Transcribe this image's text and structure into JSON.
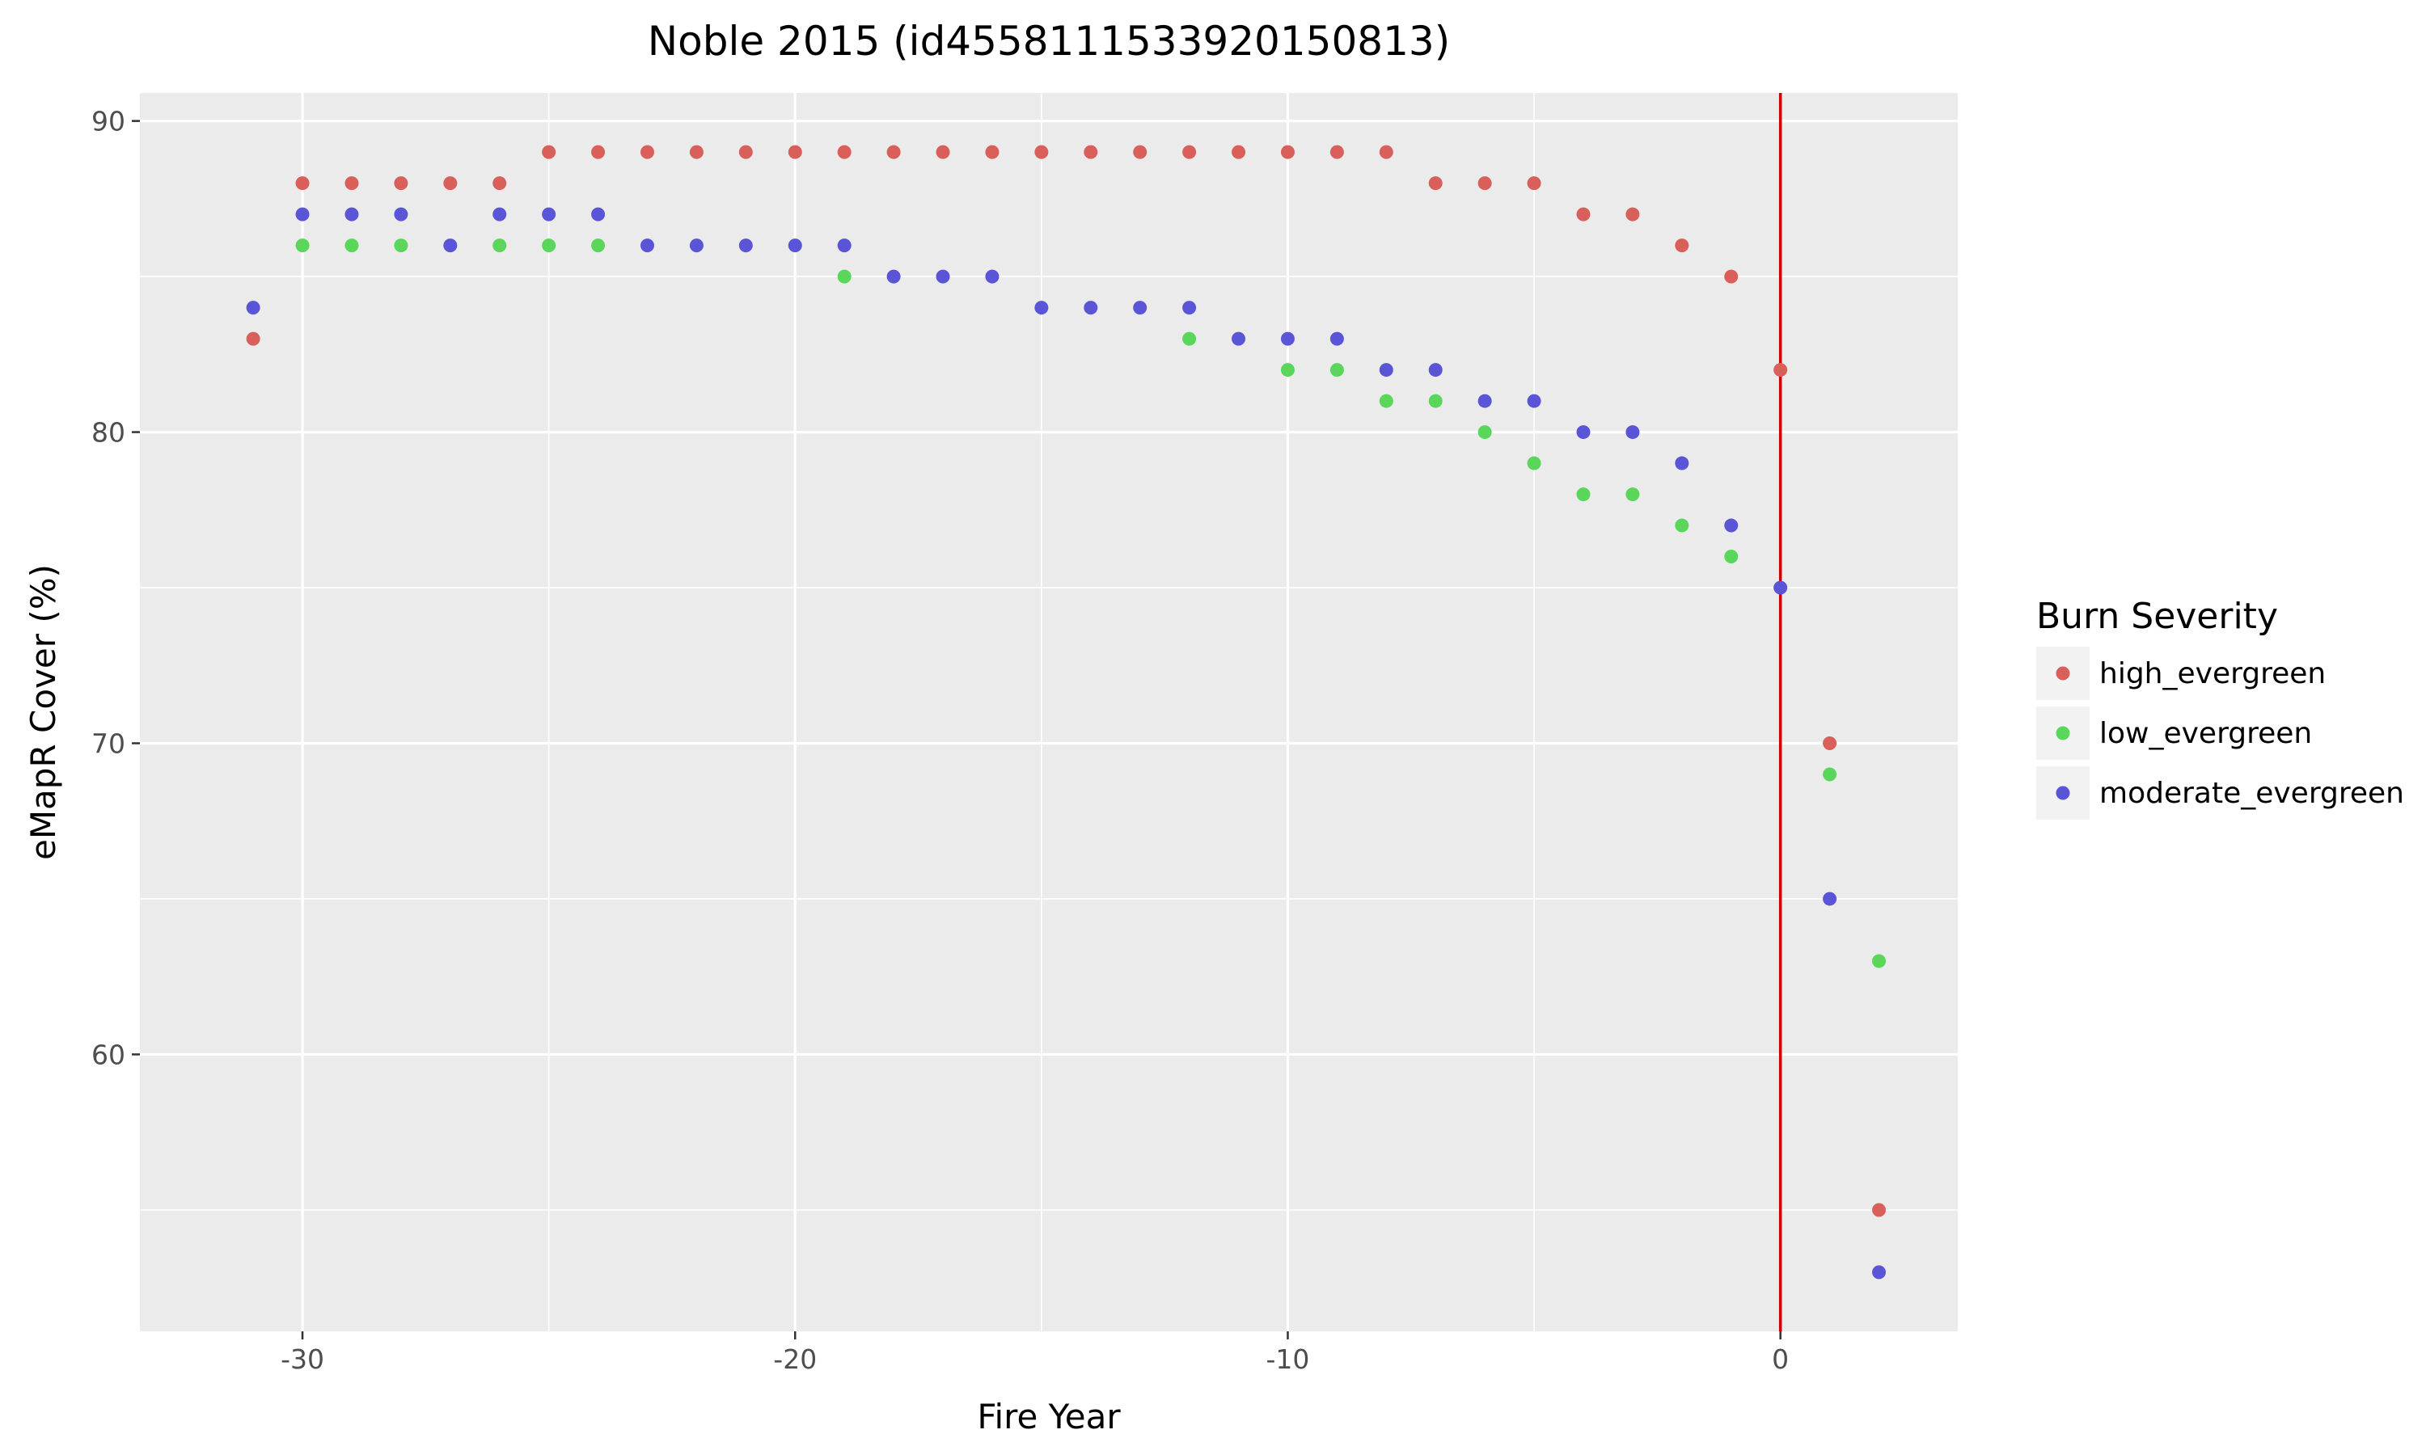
{
  "chart_data": {
    "type": "scatter",
    "title": "Noble 2015 (id4558111533920150813)",
    "xlabel": "Fire Year",
    "ylabel": "eMapR Cover (%)",
    "xlim": [
      -33.3,
      3.6
    ],
    "ylim": [
      51.1,
      90.9
    ],
    "x_ticks": [
      -30,
      -20,
      -10,
      0
    ],
    "y_ticks": [
      60,
      70,
      80,
      90
    ],
    "grid": true,
    "legend": {
      "title": "Burn Severity",
      "position": "right"
    },
    "reference_line": {
      "x": 0,
      "color": "#cc0000"
    },
    "series": [
      {
        "name": "high_evergreen",
        "color": "#d95f5a",
        "points": [
          [
            -31,
            83
          ],
          [
            -30,
            88
          ],
          [
            -29,
            88
          ],
          [
            -28,
            88
          ],
          [
            -27,
            88
          ],
          [
            -26,
            88
          ],
          [
            -25,
            89
          ],
          [
            -24,
            89
          ],
          [
            -23,
            89
          ],
          [
            -22,
            89
          ],
          [
            -21,
            89
          ],
          [
            -20,
            89
          ],
          [
            -19,
            89
          ],
          [
            -18,
            89
          ],
          [
            -17,
            89
          ],
          [
            -16,
            89
          ],
          [
            -15,
            89
          ],
          [
            -14,
            89
          ],
          [
            -13,
            89
          ],
          [
            -12,
            89
          ],
          [
            -11,
            89
          ],
          [
            -10,
            89
          ],
          [
            -9,
            89
          ],
          [
            -8,
            89
          ],
          [
            -7,
            88
          ],
          [
            -6,
            88
          ],
          [
            -5,
            88
          ],
          [
            -4,
            87
          ],
          [
            -3,
            87
          ],
          [
            -2,
            86
          ],
          [
            -1,
            85
          ],
          [
            0,
            82
          ],
          [
            1,
            70
          ],
          [
            2,
            55
          ]
        ]
      },
      {
        "name": "low_evergreen",
        "color": "#5ad65a",
        "points": [
          [
            -30,
            86
          ],
          [
            -29,
            86
          ],
          [
            -28,
            86
          ],
          [
            -26,
            86
          ],
          [
            -25,
            86
          ],
          [
            -24,
            86
          ],
          [
            -19,
            85
          ],
          [
            -12,
            83
          ],
          [
            -10,
            82
          ],
          [
            -9,
            82
          ],
          [
            -8,
            81
          ],
          [
            -7,
            81
          ],
          [
            -6,
            80
          ],
          [
            -5,
            79
          ],
          [
            -4,
            78
          ],
          [
            -3,
            78
          ],
          [
            -2,
            77
          ],
          [
            -1,
            76
          ],
          [
            1,
            69
          ],
          [
            2,
            63
          ]
        ]
      },
      {
        "name": "moderate_evergreen",
        "color": "#5a55d6",
        "points": [
          [
            -31,
            84
          ],
          [
            -30,
            87
          ],
          [
            -29,
            87
          ],
          [
            -28,
            87
          ],
          [
            -27,
            86
          ],
          [
            -26,
            87
          ],
          [
            -25,
            87
          ],
          [
            -24,
            87
          ],
          [
            -23,
            86
          ],
          [
            -22,
            86
          ],
          [
            -21,
            86
          ],
          [
            -20,
            86
          ],
          [
            -19,
            86
          ],
          [
            -18,
            85
          ],
          [
            -17,
            85
          ],
          [
            -16,
            85
          ],
          [
            -15,
            84
          ],
          [
            -14,
            84
          ],
          [
            -13,
            84
          ],
          [
            -12,
            84
          ],
          [
            -11,
            83
          ],
          [
            -10,
            83
          ],
          [
            -9,
            83
          ],
          [
            -8,
            82
          ],
          [
            -7,
            82
          ],
          [
            -6,
            81
          ],
          [
            -5,
            81
          ],
          [
            -4,
            80
          ],
          [
            -3,
            80
          ],
          [
            -2,
            79
          ],
          [
            -1,
            77
          ],
          [
            0,
            75
          ],
          [
            1,
            65
          ],
          [
            2,
            53
          ]
        ]
      }
    ]
  }
}
